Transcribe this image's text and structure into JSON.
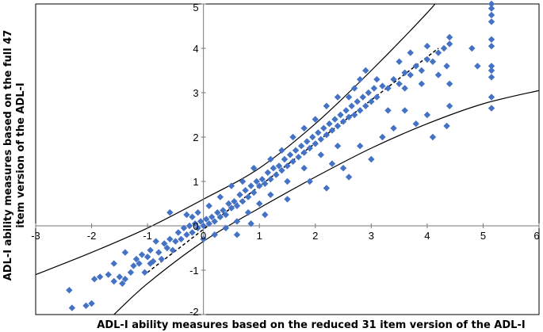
{
  "chart_data": {
    "type": "scatter",
    "title": "",
    "xlabel": "ADL-I ability measures based on the reduced 31 item version of the ADL-I",
    "ylabel": "ADL-I ability measures based on  the full 47 item version of the ADL-I",
    "xlim": [
      -3,
      6
    ],
    "ylim": [
      -2,
      5
    ],
    "x_ticks": [
      "-3",
      "-2",
      "-1",
      "0",
      "1",
      "2",
      "3",
      "4",
      "5",
      "6"
    ],
    "y_ticks": [
      "-2",
      "-1",
      "0",
      "1",
      "2",
      "3",
      "4",
      "5"
    ],
    "grid": false,
    "legend": "none",
    "marker_color": "#4472C4",
    "marker": "diamond",
    "points": [
      [
        -2.4,
        -1.45
      ],
      [
        -2.35,
        -1.85
      ],
      [
        -2.1,
        -1.8
      ],
      [
        -2.0,
        -1.75
      ],
      [
        -1.95,
        -1.2
      ],
      [
        -1.85,
        -1.15
      ],
      [
        -1.7,
        -1.1
      ],
      [
        -1.6,
        -1.25
      ],
      [
        -1.5,
        -1.15
      ],
      [
        -1.45,
        -1.3
      ],
      [
        -1.4,
        -1.2
      ],
      [
        -1.3,
        -1.05
      ],
      [
        -1.25,
        -0.9
      ],
      [
        -1.2,
        -0.75
      ],
      [
        -1.15,
        -0.85
      ],
      [
        -1.1,
        -0.65
      ],
      [
        -1.05,
        -1.05
      ],
      [
        -1.0,
        -0.7
      ],
      [
        -0.95,
        -0.55
      ],
      [
        -0.95,
        -0.85
      ],
      [
        -0.9,
        -0.8
      ],
      [
        -0.85,
        -0.35
      ],
      [
        -0.8,
        -0.6
      ],
      [
        -0.75,
        -0.75
      ],
      [
        -0.7,
        -0.4
      ],
      [
        -0.65,
        -0.5
      ],
      [
        -0.6,
        -0.3
      ],
      [
        -0.55,
        -0.55
      ],
      [
        -0.5,
        -0.35
      ],
      [
        -0.45,
        -0.15
      ],
      [
        -0.4,
        -0.3
      ],
      [
        -0.35,
        -0.05
      ],
      [
        -0.3,
        -0.2
      ],
      [
        -0.25,
        0.0
      ],
      [
        -0.2,
        -0.15
      ],
      [
        -0.15,
        0.05
      ],
      [
        -0.1,
        -0.05
      ],
      [
        -0.05,
        0.1
      ],
      [
        0.0,
        0.0
      ],
      [
        0.05,
        0.15
      ],
      [
        0.1,
        0.05
      ],
      [
        0.15,
        0.2
      ],
      [
        0.2,
        0.1
      ],
      [
        0.25,
        0.3
      ],
      [
        0.3,
        0.2
      ],
      [
        0.35,
        0.35
      ],
      [
        0.4,
        0.25
      ],
      [
        0.45,
        0.5
      ],
      [
        0.5,
        0.4
      ],
      [
        0.55,
        0.55
      ],
      [
        0.6,
        0.45
      ],
      [
        0.65,
        0.7
      ],
      [
        0.7,
        0.55
      ],
      [
        0.75,
        0.8
      ],
      [
        0.8,
        0.65
      ],
      [
        0.85,
        0.9
      ],
      [
        0.9,
        0.75
      ],
      [
        0.95,
        1.0
      ],
      [
        1.0,
        0.9
      ],
      [
        1.05,
        1.05
      ],
      [
        1.1,
        0.95
      ],
      [
        1.15,
        1.2
      ],
      [
        1.2,
        1.05
      ],
      [
        1.25,
        1.3
      ],
      [
        1.3,
        1.15
      ],
      [
        1.35,
        1.35
      ],
      [
        1.4,
        1.25
      ],
      [
        1.45,
        1.5
      ],
      [
        1.5,
        1.35
      ],
      [
        1.55,
        1.6
      ],
      [
        1.6,
        1.45
      ],
      [
        1.65,
        1.7
      ],
      [
        1.7,
        1.55
      ],
      [
        1.75,
        1.8
      ],
      [
        1.8,
        1.65
      ],
      [
        1.85,
        1.9
      ],
      [
        1.9,
        1.75
      ],
      [
        1.95,
        2.0
      ],
      [
        2.0,
        1.85
      ],
      [
        2.05,
        2.1
      ],
      [
        2.1,
        1.95
      ],
      [
        2.15,
        2.2
      ],
      [
        2.2,
        2.05
      ],
      [
        2.25,
        2.3
      ],
      [
        2.3,
        2.15
      ],
      [
        2.35,
        2.4
      ],
      [
        2.4,
        2.25
      ],
      [
        2.45,
        2.5
      ],
      [
        2.5,
        2.35
      ],
      [
        2.55,
        2.6
      ],
      [
        2.6,
        2.45
      ],
      [
        2.65,
        2.7
      ],
      [
        2.7,
        2.5
      ],
      [
        2.75,
        2.8
      ],
      [
        2.8,
        2.6
      ],
      [
        2.85,
        2.9
      ],
      [
        2.9,
        2.7
      ],
      [
        2.95,
        3.0
      ],
      [
        3.0,
        2.8
      ],
      [
        3.05,
        3.1
      ],
      [
        3.1,
        2.9
      ],
      [
        3.2,
        3.15
      ],
      [
        3.3,
        3.1
      ],
      [
        3.4,
        3.3
      ],
      [
        3.5,
        3.2
      ],
      [
        3.6,
        3.45
      ],
      [
        3.7,
        3.4
      ],
      [
        3.8,
        3.6
      ],
      [
        3.9,
        3.5
      ],
      [
        4.0,
        3.75
      ],
      [
        4.1,
        3.7
      ],
      [
        4.2,
        3.9
      ],
      [
        4.3,
        4.0
      ],
      [
        4.4,
        4.25
      ],
      [
        4.4,
        4.1
      ],
      [
        4.35,
        3.6
      ],
      [
        4.4,
        3.2
      ],
      [
        4.4,
        2.7
      ],
      [
        4.35,
        2.25
      ],
      [
        4.0,
        2.5
      ],
      [
        4.1,
        2.0
      ],
      [
        3.8,
        2.3
      ],
      [
        3.6,
        2.6
      ],
      [
        3.2,
        2.0
      ],
      [
        3.0,
        1.5
      ],
      [
        2.5,
        1.3
      ],
      [
        2.6,
        1.1
      ],
      [
        2.3,
        1.4
      ],
      [
        2.2,
        0.85
      ],
      [
        2.8,
        1.8
      ],
      [
        3.4,
        2.2
      ],
      [
        3.1,
        3.3
      ],
      [
        2.9,
        3.5
      ],
      [
        2.8,
        3.3
      ],
      [
        2.7,
        3.1
      ],
      [
        2.4,
        2.9
      ],
      [
        2.2,
        2.7
      ],
      [
        2.0,
        2.4
      ],
      [
        1.8,
        2.2
      ],
      [
        1.6,
        2.0
      ],
      [
        1.4,
        1.7
      ],
      [
        1.2,
        1.5
      ],
      [
        0.9,
        1.3
      ],
      [
        0.7,
        1.0
      ],
      [
        0.5,
        0.9
      ],
      [
        0.3,
        0.65
      ],
      [
        0.1,
        0.45
      ],
      [
        -0.1,
        0.3
      ],
      [
        -0.2,
        0.2
      ],
      [
        0.0,
        -0.3
      ],
      [
        0.2,
        -0.2
      ],
      [
        0.4,
        -0.05
      ],
      [
        0.6,
        0.1
      ],
      [
        0.8,
        0.3
      ],
      [
        1.0,
        0.5
      ],
      [
        1.2,
        0.7
      ],
      [
        1.5,
        1.0
      ],
      [
        1.8,
        1.3
      ],
      [
        2.1,
        1.6
      ],
      [
        2.4,
        1.8
      ],
      [
        1.1,
        0.25
      ],
      [
        1.5,
        0.6
      ],
      [
        1.9,
        1.0
      ],
      [
        0.6,
        -0.2
      ],
      [
        0.85,
        0.05
      ],
      [
        4.8,
        4.0
      ],
      [
        4.9,
        3.6
      ],
      [
        5.15,
        5.0
      ],
      [
        5.15,
        4.9
      ],
      [
        5.15,
        4.75
      ],
      [
        5.15,
        4.6
      ],
      [
        5.15,
        4.2
      ],
      [
        5.15,
        4.05
      ],
      [
        5.15,
        3.6
      ],
      [
        5.15,
        3.5
      ],
      [
        5.15,
        3.35
      ],
      [
        5.15,
        2.9
      ],
      [
        5.15,
        2.65
      ],
      [
        -1.6,
        -0.85
      ],
      [
        -1.4,
        -0.6
      ],
      [
        -0.6,
        0.3
      ],
      [
        -0.3,
        0.25
      ],
      [
        2.6,
        2.9
      ],
      [
        3.3,
        2.6
      ],
      [
        3.6,
        3.1
      ],
      [
        3.9,
        3.2
      ],
      [
        4.2,
        3.4
      ],
      [
        3.5,
        3.7
      ],
      [
        3.7,
        3.9
      ],
      [
        4.0,
        4.05
      ]
    ],
    "lines": [
      {
        "style": "solid",
        "points": [
          [
            -3.0,
            -1.1
          ],
          [
            -2.0,
            -0.6
          ],
          [
            -1.0,
            -0.05
          ],
          [
            0.0,
            0.6
          ],
          [
            1.0,
            1.3
          ],
          [
            2.0,
            2.3
          ],
          [
            3.0,
            3.5
          ],
          [
            4.0,
            4.8
          ],
          [
            4.4,
            5.4
          ]
        ]
      },
      {
        "style": "solid",
        "points": [
          [
            -1.6,
            -2.0
          ],
          [
            -1.0,
            -1.3
          ],
          [
            0.0,
            -0.35
          ],
          [
            1.0,
            0.4
          ],
          [
            2.0,
            1.1
          ],
          [
            3.0,
            1.75
          ],
          [
            4.0,
            2.3
          ],
          [
            5.0,
            2.75
          ],
          [
            6.0,
            3.05
          ]
        ]
      },
      {
        "style": "dashed",
        "points": [
          [
            -1.0,
            -1.05
          ],
          [
            4.2,
            4.0
          ]
        ]
      }
    ]
  }
}
